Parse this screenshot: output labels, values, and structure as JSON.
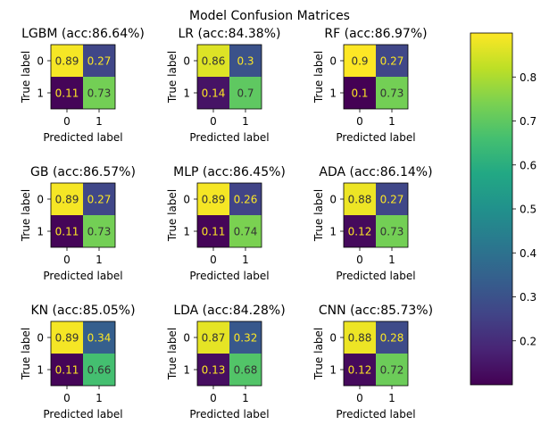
{
  "figure_title": "Model Confusion Matrices",
  "chart_data": {
    "type": "heatmap",
    "title": "Model Confusion Matrices",
    "colormap": "viridis",
    "xlabel": "Predicted label",
    "ylabel": "True label",
    "class_labels": [
      "0",
      "1"
    ],
    "text_color_on_dark": "#fde725",
    "text_color_on_light": "#333333",
    "colorbar": {
      "min": 0.1,
      "max": 0.9,
      "ticks": [
        0.2,
        0.3,
        0.4,
        0.5,
        0.6,
        0.7,
        0.8
      ],
      "tick_labels": [
        "0.2",
        "0.3",
        "0.4",
        "0.5",
        "0.6",
        "0.7",
        "0.8"
      ]
    },
    "matrices": [
      {
        "title": "LGBM (acc:86.64%)",
        "values": [
          [
            0.89,
            0.27
          ],
          [
            0.11,
            0.73
          ]
        ],
        "labels": [
          [
            "0.89",
            "0.27"
          ],
          [
            "0.11",
            "0.73"
          ]
        ]
      },
      {
        "title": "LR (acc:84.38%)",
        "values": [
          [
            0.86,
            0.3
          ],
          [
            0.14,
            0.7
          ]
        ],
        "labels": [
          [
            "0.86",
            "0.3"
          ],
          [
            "0.14",
            "0.7"
          ]
        ]
      },
      {
        "title": "RF (acc:86.97%)",
        "values": [
          [
            0.9,
            0.27
          ],
          [
            0.1,
            0.73
          ]
        ],
        "labels": [
          [
            "0.9",
            "0.27"
          ],
          [
            "0.1",
            "0.73"
          ]
        ]
      },
      {
        "title": "GB (acc:86.57%)",
        "values": [
          [
            0.89,
            0.27
          ],
          [
            0.11,
            0.73
          ]
        ],
        "labels": [
          [
            "0.89",
            "0.27"
          ],
          [
            "0.11",
            "0.73"
          ]
        ]
      },
      {
        "title": "MLP (acc:86.45%)",
        "values": [
          [
            0.89,
            0.26
          ],
          [
            0.11,
            0.74
          ]
        ],
        "labels": [
          [
            "0.89",
            "0.26"
          ],
          [
            "0.11",
            "0.74"
          ]
        ]
      },
      {
        "title": "ADA (acc:86.14%)",
        "values": [
          [
            0.88,
            0.27
          ],
          [
            0.12,
            0.73
          ]
        ],
        "labels": [
          [
            "0.88",
            "0.27"
          ],
          [
            "0.12",
            "0.73"
          ]
        ]
      },
      {
        "title": "KN (acc:85.05%)",
        "values": [
          [
            0.89,
            0.34
          ],
          [
            0.11,
            0.66
          ]
        ],
        "labels": [
          [
            "0.89",
            "0.34"
          ],
          [
            "0.11",
            "0.66"
          ]
        ]
      },
      {
        "title": "LDA (acc:84.28%)",
        "values": [
          [
            0.87,
            0.32
          ],
          [
            0.13,
            0.68
          ]
        ],
        "labels": [
          [
            "0.87",
            "0.32"
          ],
          [
            "0.13",
            "0.68"
          ]
        ]
      },
      {
        "title": "CNN (acc:85.73%)",
        "values": [
          [
            0.88,
            0.28
          ],
          [
            0.12,
            0.72
          ]
        ],
        "labels": [
          [
            "0.88",
            "0.28"
          ],
          [
            "0.12",
            "0.72"
          ]
        ]
      }
    ]
  }
}
